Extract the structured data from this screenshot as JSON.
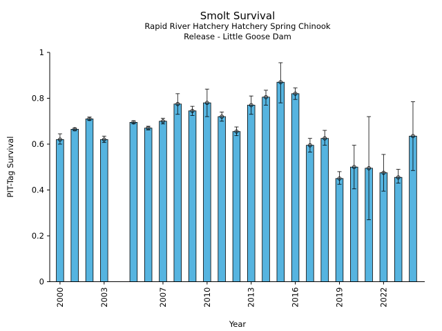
{
  "chart_data": {
    "type": "bar",
    "title": "Smolt Survival",
    "subtitle_lines": [
      "Rapid River Hatchery Hatchery Spring Chinook",
      "Release - Little Goose Dam"
    ],
    "xlabel": "Year",
    "ylabel": "PIT-Tag Survival",
    "ylim": [
      0,
      1
    ],
    "xlim": [
      1999.3,
      2024.8
    ],
    "y_ticks": [
      0,
      0.2,
      0.4,
      0.6,
      0.8,
      1
    ],
    "y_tick_labels": [
      "0",
      "0.2",
      "0.4",
      "0.6",
      "0.8",
      "1"
    ],
    "x_ticks": [
      2000,
      2003,
      2007,
      2010,
      2013,
      2016,
      2019,
      2022
    ],
    "x_tick_labels": [
      "2000",
      "2003",
      "2007",
      "2010",
      "2013",
      "2016",
      "2019",
      "2022"
    ],
    "grid": false,
    "bar_color": "#56b4e0",
    "data": [
      {
        "year": 2000,
        "value": 0.62,
        "err_low": 0.6,
        "err_high": 0.645
      },
      {
        "year": 2001,
        "value": 0.665,
        "err_low": 0.658,
        "err_high": 0.67
      },
      {
        "year": 2002,
        "value": 0.71,
        "err_low": 0.703,
        "err_high": 0.718
      },
      {
        "year": 2003,
        "value": 0.62,
        "err_low": 0.607,
        "err_high": 0.635
      },
      {
        "year": 2005,
        "value": 0.695,
        "err_low": 0.689,
        "err_high": 0.702
      },
      {
        "year": 2006,
        "value": 0.67,
        "err_low": 0.662,
        "err_high": 0.678
      },
      {
        "year": 2007,
        "value": 0.7,
        "err_low": 0.688,
        "err_high": 0.713
      },
      {
        "year": 2008,
        "value": 0.775,
        "err_low": 0.73,
        "err_high": 0.82
      },
      {
        "year": 2009,
        "value": 0.745,
        "err_low": 0.725,
        "err_high": 0.765
      },
      {
        "year": 2010,
        "value": 0.78,
        "err_low": 0.72,
        "err_high": 0.84
      },
      {
        "year": 2011,
        "value": 0.72,
        "err_low": 0.7,
        "err_high": 0.74
      },
      {
        "year": 2012,
        "value": 0.655,
        "err_low": 0.637,
        "err_high": 0.675
      },
      {
        "year": 2013,
        "value": 0.77,
        "err_low": 0.73,
        "err_high": 0.81
      },
      {
        "year": 2014,
        "value": 0.805,
        "err_low": 0.77,
        "err_high": 0.835
      },
      {
        "year": 2015,
        "value": 0.87,
        "err_low": 0.78,
        "err_high": 0.955
      },
      {
        "year": 2016,
        "value": 0.82,
        "err_low": 0.795,
        "err_high": 0.845
      },
      {
        "year": 2017,
        "value": 0.595,
        "err_low": 0.565,
        "err_high": 0.625
      },
      {
        "year": 2018,
        "value": 0.625,
        "err_low": 0.595,
        "err_high": 0.66
      },
      {
        "year": 2019,
        "value": 0.45,
        "err_low": 0.425,
        "err_high": 0.48
      },
      {
        "year": 2020,
        "value": 0.5,
        "err_low": 0.405,
        "err_high": 0.595
      },
      {
        "year": 2021,
        "value": 0.495,
        "err_low": 0.27,
        "err_high": 0.72
      },
      {
        "year": 2022,
        "value": 0.475,
        "err_low": 0.395,
        "err_high": 0.555
      },
      {
        "year": 2023,
        "value": 0.455,
        "err_low": 0.43,
        "err_high": 0.49
      },
      {
        "year": 2024,
        "value": 0.635,
        "err_low": 0.485,
        "err_high": 0.785
      }
    ]
  }
}
